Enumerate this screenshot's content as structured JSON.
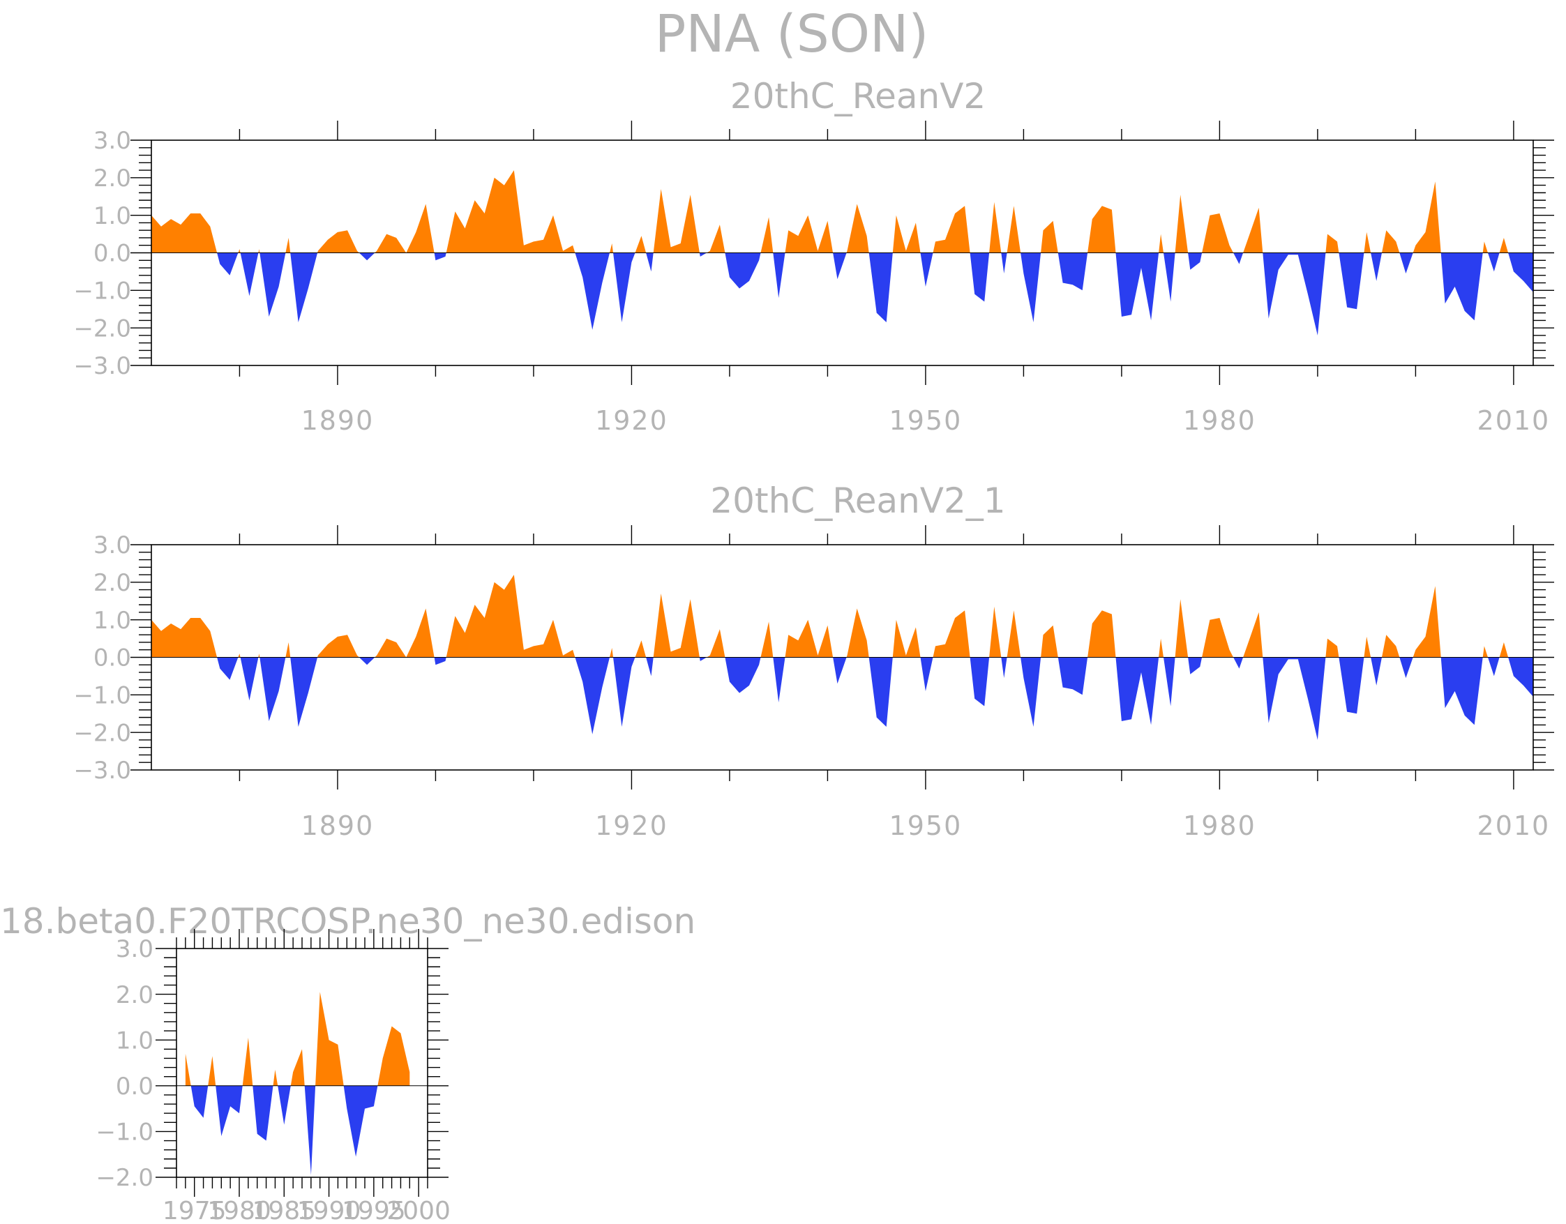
{
  "figure_title": "PNA (SON)",
  "colors": {
    "positive": "#ff8000",
    "negative": "#2a3ef0",
    "text": "#b4b4b4"
  },
  "chart_data": [
    {
      "type": "area",
      "title": "20thC_ReanV2",
      "xlabel": "",
      "ylabel": "",
      "xlim": [
        1871,
        2012
      ],
      "ylim": [
        -3.0,
        3.0
      ],
      "yticks": [
        3.0,
        2.0,
        1.0,
        0.0,
        -1.0,
        -2.0,
        -3.0
      ],
      "ytick_labels": [
        "3.0",
        "2.0",
        "1.0",
        "0.0",
        "−1.0",
        "−2.0",
        "−3.0"
      ],
      "xticks": [
        1890,
        1920,
        1950,
        1980,
        2010
      ],
      "xtick_labels": [
        "1890",
        "1920",
        "1950",
        "1980",
        "2010"
      ],
      "fill_above_zero": "#ff8000",
      "fill_below_zero": "#2a3ef0",
      "x": [
        1871,
        1872,
        1873,
        1874,
        1875,
        1876,
        1877,
        1878,
        1879,
        1880,
        1881,
        1882,
        1883,
        1884,
        1885,
        1886,
        1887,
        1888,
        1889,
        1890,
        1891,
        1892,
        1893,
        1894,
        1895,
        1896,
        1897,
        1898,
        1899,
        1900,
        1901,
        1902,
        1903,
        1904,
        1905,
        1906,
        1907,
        1908,
        1909,
        1910,
        1911,
        1912,
        1913,
        1914,
        1915,
        1916,
        1917,
        1918,
        1919,
        1920,
        1921,
        1922,
        1923,
        1924,
        1925,
        1926,
        1927,
        1928,
        1929,
        1930,
        1931,
        1932,
        1933,
        1934,
        1935,
        1936,
        1937,
        1938,
        1939,
        1940,
        1941,
        1942,
        1943,
        1944,
        1945,
        1946,
        1947,
        1948,
        1949,
        1950,
        1951,
        1952,
        1953,
        1954,
        1955,
        1956,
        1957,
        1958,
        1959,
        1960,
        1961,
        1962,
        1963,
        1964,
        1965,
        1966,
        1967,
        1968,
        1969,
        1970,
        1971,
        1972,
        1973,
        1974,
        1975,
        1976,
        1977,
        1978,
        1979,
        1980,
        1981,
        1982,
        1983,
        1984,
        1985,
        1986,
        1987,
        1988,
        1989,
        1990,
        1991,
        1992,
        1993,
        1994,
        1995,
        1996,
        1997,
        1998,
        1999,
        2000,
        2001,
        2002,
        2003,
        2004,
        2005,
        2006,
        2007,
        2008,
        2009,
        2010,
        2011,
        2012
      ],
      "values": [
        1.0,
        0.7,
        0.9,
        0.75,
        1.05,
        1.05,
        0.7,
        -0.3,
        -0.6,
        0.1,
        -1.15,
        0.1,
        -1.7,
        -0.9,
        0.4,
        -1.85,
        -0.95,
        0.05,
        0.35,
        0.55,
        0.6,
        0.05,
        -0.2,
        0.05,
        0.5,
        0.4,
        0.0,
        0.55,
        1.3,
        -0.2,
        -0.1,
        1.1,
        0.65,
        1.4,
        1.05,
        2.0,
        1.8,
        2.2,
        0.2,
        0.3,
        0.35,
        1.0,
        0.05,
        0.2,
        -0.65,
        -2.05,
        -0.8,
        0.25,
        -1.85,
        -0.25,
        0.45,
        -0.5,
        1.7,
        0.15,
        0.25,
        1.55,
        -0.1,
        0.05,
        0.75,
        -0.65,
        -0.95,
        -0.75,
        -0.2,
        0.95,
        -1.2,
        0.6,
        0.45,
        1.0,
        0.05,
        0.85,
        -0.7,
        0.05,
        1.3,
        0.45,
        -1.6,
        -1.85,
        1.0,
        0.05,
        0.8,
        -0.9,
        0.3,
        0.35,
        1.05,
        1.25,
        -1.1,
        -1.3,
        1.35,
        -0.55,
        1.25,
        -0.55,
        -1.85,
        0.6,
        0.85,
        -0.8,
        -0.85,
        -1.0,
        0.9,
        1.25,
        1.15,
        -1.7,
        -1.65,
        -0.4,
        -1.8,
        0.5,
        -1.3,
        1.55,
        -0.45,
        -0.25,
        1.0,
        1.05,
        0.2,
        -0.3,
        0.45,
        1.2,
        -1.75,
        -0.45,
        -0.05,
        -0.05,
        -1.1,
        -2.2,
        0.5,
        0.3,
        -1.45,
        -1.5,
        0.55,
        -0.75,
        0.6,
        0.3,
        -0.55,
        0.2,
        0.55,
        1.9,
        -1.35,
        -0.9,
        -1.55,
        -1.8,
        0.3,
        -0.5,
        0.4,
        -0.5,
        -0.75,
        -1.05
      ]
    },
    {
      "type": "area",
      "title": "20thC_ReanV2_1",
      "xlabel": "",
      "ylabel": "",
      "xlim": [
        1871,
        2012
      ],
      "ylim": [
        -3.0,
        3.0
      ],
      "yticks": [
        3.0,
        2.0,
        1.0,
        0.0,
        -1.0,
        -2.0,
        -3.0
      ],
      "ytick_labels": [
        "3.0",
        "2.0",
        "1.0",
        "0.0",
        "−1.0",
        "−2.0",
        "−3.0"
      ],
      "xticks": [
        1890,
        1920,
        1950,
        1980,
        2010
      ],
      "xtick_labels": [
        "1890",
        "1920",
        "1950",
        "1980",
        "2010"
      ],
      "fill_above_zero": "#ff8000",
      "fill_below_zero": "#2a3ef0",
      "x": [
        1871,
        1872,
        1873,
        1874,
        1875,
        1876,
        1877,
        1878,
        1879,
        1880,
        1881,
        1882,
        1883,
        1884,
        1885,
        1886,
        1887,
        1888,
        1889,
        1890,
        1891,
        1892,
        1893,
        1894,
        1895,
        1896,
        1897,
        1898,
        1899,
        1900,
        1901,
        1902,
        1903,
        1904,
        1905,
        1906,
        1907,
        1908,
        1909,
        1910,
        1911,
        1912,
        1913,
        1914,
        1915,
        1916,
        1917,
        1918,
        1919,
        1920,
        1921,
        1922,
        1923,
        1924,
        1925,
        1926,
        1927,
        1928,
        1929,
        1930,
        1931,
        1932,
        1933,
        1934,
        1935,
        1936,
        1937,
        1938,
        1939,
        1940,
        1941,
        1942,
        1943,
        1944,
        1945,
        1946,
        1947,
        1948,
        1949,
        1950,
        1951,
        1952,
        1953,
        1954,
        1955,
        1956,
        1957,
        1958,
        1959,
        1960,
        1961,
        1962,
        1963,
        1964,
        1965,
        1966,
        1967,
        1968,
        1969,
        1970,
        1971,
        1972,
        1973,
        1974,
        1975,
        1976,
        1977,
        1978,
        1979,
        1980,
        1981,
        1982,
        1983,
        1984,
        1985,
        1986,
        1987,
        1988,
        1989,
        1990,
        1991,
        1992,
        1993,
        1994,
        1995,
        1996,
        1997,
        1998,
        1999,
        2000,
        2001,
        2002,
        2003,
        2004,
        2005,
        2006,
        2007,
        2008,
        2009,
        2010,
        2011,
        2012
      ],
      "values": [
        1.0,
        0.7,
        0.9,
        0.75,
        1.05,
        1.05,
        0.7,
        -0.3,
        -0.6,
        0.1,
        -1.15,
        0.1,
        -1.7,
        -0.9,
        0.4,
        -1.85,
        -0.95,
        0.05,
        0.35,
        0.55,
        0.6,
        0.05,
        -0.2,
        0.05,
        0.5,
        0.4,
        0.0,
        0.55,
        1.3,
        -0.2,
        -0.1,
        1.1,
        0.65,
        1.4,
        1.05,
        2.0,
        1.8,
        2.2,
        0.2,
        0.3,
        0.35,
        1.0,
        0.05,
        0.2,
        -0.65,
        -2.05,
        -0.8,
        0.25,
        -1.85,
        -0.25,
        0.45,
        -0.5,
        1.7,
        0.15,
        0.25,
        1.55,
        -0.1,
        0.05,
        0.75,
        -0.65,
        -0.95,
        -0.75,
        -0.2,
        0.95,
        -1.2,
        0.6,
        0.45,
        1.0,
        0.05,
        0.85,
        -0.7,
        0.05,
        1.3,
        0.45,
        -1.6,
        -1.85,
        1.0,
        0.05,
        0.8,
        -0.9,
        0.3,
        0.35,
        1.05,
        1.25,
        -1.1,
        -1.3,
        1.35,
        -0.55,
        1.25,
        -0.55,
        -1.85,
        0.6,
        0.85,
        -0.8,
        -0.85,
        -1.0,
        0.9,
        1.25,
        1.15,
        -1.7,
        -1.65,
        -0.4,
        -1.8,
        0.5,
        -1.3,
        1.55,
        -0.45,
        -0.25,
        1.0,
        1.05,
        0.2,
        -0.3,
        0.45,
        1.2,
        -1.75,
        -0.45,
        -0.05,
        -0.05,
        -1.1,
        -2.2,
        0.5,
        0.3,
        -1.45,
        -1.5,
        0.55,
        -0.75,
        0.6,
        0.3,
        -0.55,
        0.2,
        0.55,
        1.9,
        -1.35,
        -0.9,
        -1.55,
        -1.8,
        0.3,
        -0.5,
        0.4,
        -0.5,
        -0.75,
        -1.05
      ]
    },
    {
      "type": "area",
      "title": "18.beta0.F20TRCOSP.ne30_ne30.edison",
      "xlabel": "",
      "ylabel": "",
      "xlim": [
        1973,
        2001
      ],
      "ylim": [
        -2.0,
        3.0
      ],
      "yticks": [
        3.0,
        2.0,
        1.0,
        0.0,
        -1.0,
        -2.0
      ],
      "ytick_labels": [
        "3.0",
        "2.0",
        "1.0",
        "0.0",
        "−1.0",
        "−2.0"
      ],
      "xticks": [
        1975,
        1980,
        1985,
        1990,
        1995,
        2000
      ],
      "xtick_labels": [
        "1975",
        "1980",
        "1985",
        "1990",
        "1995",
        "2000"
      ],
      "fill_above_zero": "#ff8000",
      "fill_below_zero": "#2a3ef0",
      "x": [
        1974,
        1975,
        1976,
        1977,
        1978,
        1979,
        1980,
        1981,
        1982,
        1983,
        1984,
        1985,
        1986,
        1987,
        1988,
        1989,
        1990,
        1991,
        1992,
        1993,
        1994,
        1995,
        1996,
        1997,
        1998,
        1999
      ],
      "values": [
        0.7,
        -0.45,
        -0.7,
        0.65,
        -1.1,
        -0.45,
        -0.6,
        1.05,
        -1.05,
        -1.2,
        0.35,
        -0.85,
        0.3,
        0.8,
        -1.95,
        2.05,
        1.0,
        0.9,
        -0.5,
        -1.55,
        -0.5,
        -0.45,
        0.6,
        1.3,
        1.15,
        0.3
      ]
    }
  ]
}
